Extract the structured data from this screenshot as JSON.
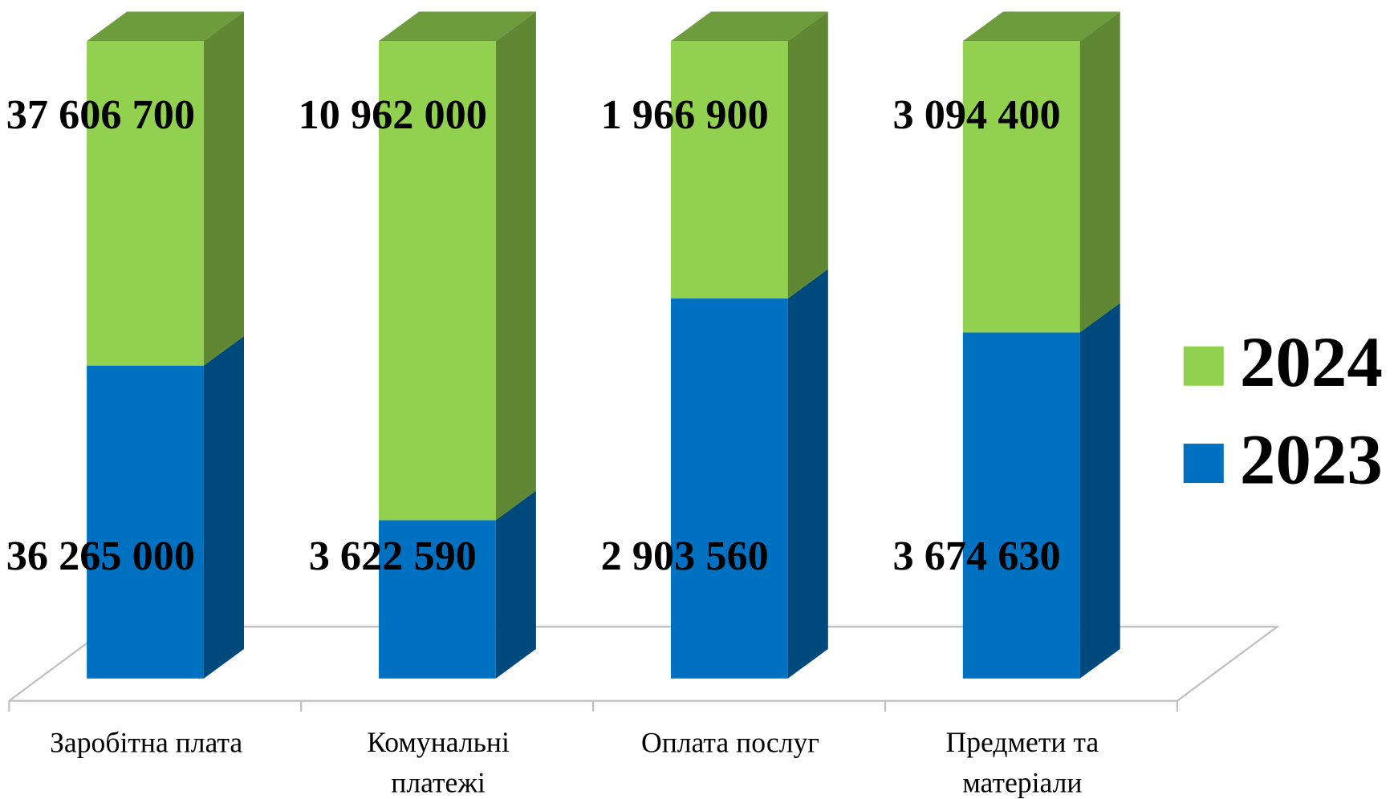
{
  "chart_data": {
    "type": "bar",
    "stacked": true,
    "normalized": true,
    "categories": [
      "Заробітна плата",
      "Комунальні платежі",
      "Оплата послуг",
      "Предмети та матеріали"
    ],
    "series": [
      {
        "name": "2023",
        "color": "#0070c0",
        "values": [
          36265000,
          3622590,
          2903560,
          3674630
        ],
        "value_labels": [
          "36 265 000",
          "3 622 590",
          "2 903 560",
          "3 674 630"
        ]
      },
      {
        "name": "2024",
        "color": "#92d050",
        "values": [
          37606700,
          10962000,
          1966900,
          3094400
        ],
        "value_labels": [
          "37 606 700",
          "10 962 000",
          "1 966 900",
          "3 094 400"
        ]
      }
    ],
    "legend": "right"
  }
}
